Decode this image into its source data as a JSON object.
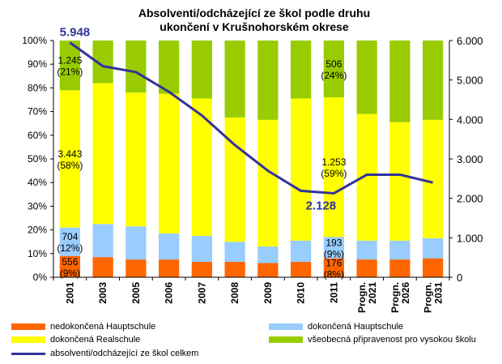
{
  "chart_data": {
    "type": "bar",
    "title": [
      "Absolventi/odcházející ze škol podle druhu",
      "ukončení v Krušnohorském okrese"
    ],
    "categories": [
      "2001",
      "2003",
      "2005",
      "2006",
      "2007",
      "2008",
      "2009",
      "2010",
      "2011",
      "Progn. 2021",
      "Progn. 2026",
      "Progn. 2031"
    ],
    "left_axis": {
      "ticks": [
        "0%",
        "10%",
        "20%",
        "30%",
        "40%",
        "50%",
        "60%",
        "70%",
        "80%",
        "90%",
        "100%"
      ],
      "min": 0,
      "max": 100
    },
    "right_axis": {
      "ticks": [
        "0",
        "1.000",
        "2.000",
        "3.000",
        "4.000",
        "5.000",
        "6.000"
      ],
      "min": 0,
      "max": 6000
    },
    "series": [
      {
        "name": "nedokončená Hauptschule",
        "color": "#ff6600",
        "values": [
          9,
          8.5,
          7.5,
          7.5,
          6.5,
          6.5,
          6,
          6.5,
          8,
          7.5,
          7.5,
          8
        ]
      },
      {
        "name": "dokončená Hauptschule",
        "color": "#99ccff",
        "values": [
          12,
          14,
          14,
          11,
          11,
          8.5,
          7,
          9,
          9,
          8,
          8,
          8.5
        ]
      },
      {
        "name": "dokončená Realschule",
        "color": "#ffff00",
        "values": [
          58,
          59.5,
          56.5,
          59,
          58,
          52.5,
          53.5,
          60,
          59,
          53.5,
          50,
          50
        ]
      },
      {
        "name": "všeobecná připravenost pro vysokou školu",
        "color": "#99cc00",
        "values": [
          21,
          18,
          22,
          22.5,
          24.5,
          32.5,
          33.5,
          24.5,
          24,
          31,
          34.5,
          33.5
        ]
      }
    ],
    "line_series": {
      "name": "absolventi/odcházející ze škol celkem",
      "color": "#333399",
      "values": [
        5948,
        5350,
        5200,
        4700,
        4100,
        3350,
        2700,
        2190,
        2128,
        2600,
        2600,
        2400
      ]
    },
    "data_labels": [
      {
        "text": [
          "556",
          "(9%)"
        ],
        "category": "2001",
        "series": "nedokončená Hauptschule"
      },
      {
        "text": [
          "704",
          "(12%)"
        ],
        "category": "2001",
        "series": "dokončená Hauptschule"
      },
      {
        "text": [
          "3.443",
          "(58%)"
        ],
        "category": "2001",
        "series": "dokončená Realschule"
      },
      {
        "text": [
          "1.245",
          "(21%)"
        ],
        "category": "2001",
        "series": "všeobecná připravenost pro vysokou školu"
      },
      {
        "text": [
          "176",
          "(8%)"
        ],
        "category": "2011",
        "series": "nedokončená Hauptschule"
      },
      {
        "text": [
          "193",
          "(9%)"
        ],
        "category": "2011",
        "series": "dokončená Hauptschule"
      },
      {
        "text": [
          "1.253",
          "(59%)"
        ],
        "category": "2011",
        "series": "dokončená Realschule"
      },
      {
        "text": [
          "506",
          "(24%)"
        ],
        "category": "2011",
        "series": "všeobecná připravenost pro vysokou školu"
      }
    ],
    "line_labels": [
      {
        "text": "5.948",
        "category": "2001"
      },
      {
        "text": "2.128",
        "category": "2011"
      }
    ],
    "legend_position": "bottom"
  }
}
